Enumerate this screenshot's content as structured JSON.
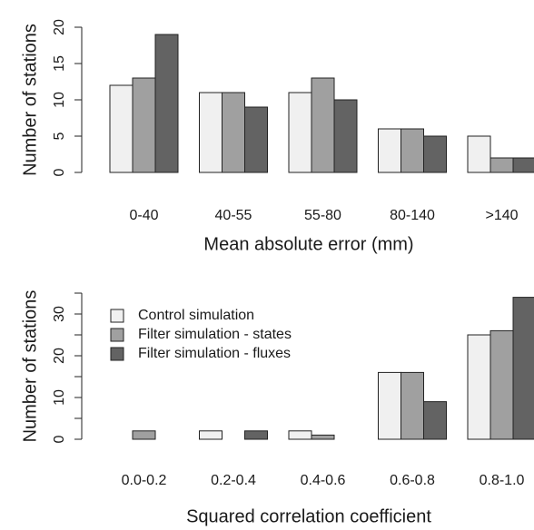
{
  "chart_data": [
    {
      "type": "bar",
      "x_label": "Mean absolute error (mm)",
      "y_label": "Number of stations",
      "categories": [
        "0-40",
        "40-55",
        "55-80",
        "80-140",
        ">140"
      ],
      "series": [
        {
          "color": "#f0f0f0",
          "values": [
            12,
            11,
            11,
            6,
            5
          ]
        },
        {
          "color": "#a0a0a0",
          "values": [
            13,
            11,
            13,
            6,
            2
          ]
        },
        {
          "color": "#636363",
          "values": [
            19,
            9,
            10,
            5,
            2
          ]
        }
      ],
      "ylim": [
        0,
        20
      ],
      "yticks": [
        0,
        5,
        10,
        15,
        20
      ]
    },
    {
      "type": "bar",
      "x_label": "Squared correlation coefficient",
      "y_label": "Number of stations",
      "categories": [
        "0.0-0.2",
        "0.2-0.4",
        "0.4-0.6",
        "0.6-0.8",
        "0.8-1.0"
      ],
      "series": [
        {
          "name": "Control simulation",
          "color": "#f0f0f0",
          "values": [
            0,
            2,
            2,
            16,
            25
          ]
        },
        {
          "name": "Filter simulation - states",
          "color": "#a0a0a0",
          "values": [
            2,
            0,
            1,
            16,
            26
          ]
        },
        {
          "name": "Filter simulation - fluxes",
          "color": "#636363",
          "values": [
            0,
            2,
            0,
            9,
            34
          ]
        }
      ],
      "ylim": [
        0,
        35
      ],
      "yticks": [
        0,
        10,
        20,
        30
      ],
      "minor_yticks": [
        5,
        15,
        25,
        35
      ],
      "legend": "top-left"
    }
  ]
}
